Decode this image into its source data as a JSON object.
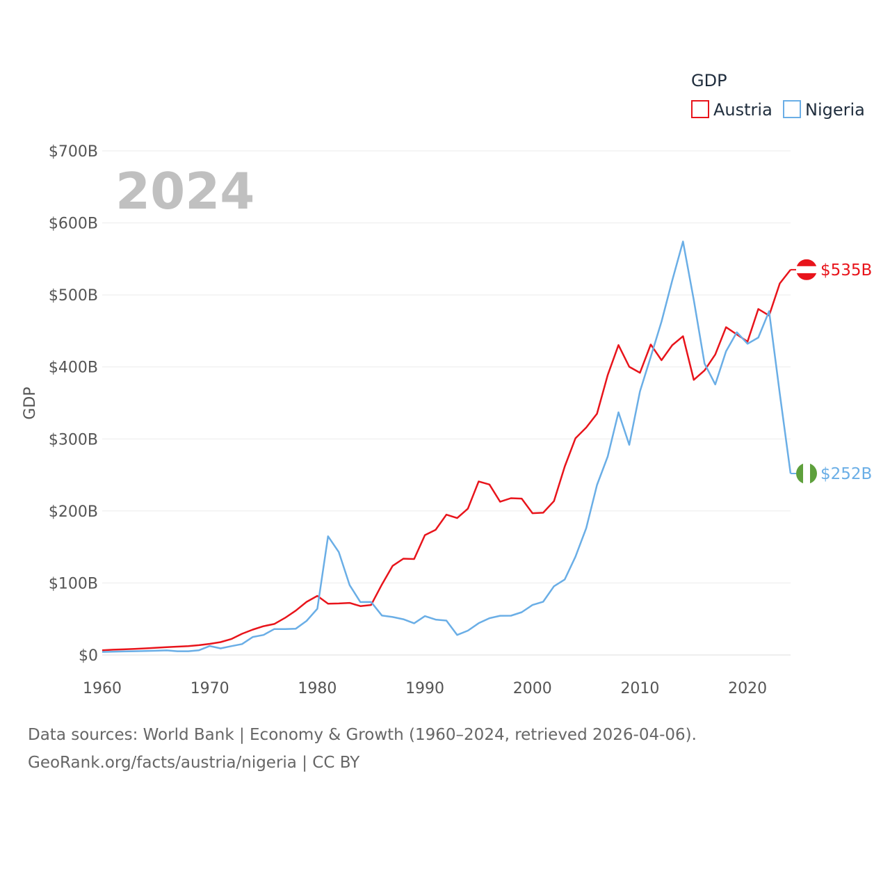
{
  "chart_data": {
    "type": "line",
    "title": "",
    "year_label": "2024",
    "legend_title": "GDP",
    "ylabel": "GDP",
    "xlabel": "",
    "ylim": [
      0,
      700
    ],
    "xlim": [
      1960,
      2024
    ],
    "x_ticks": [
      "1960",
      "1970",
      "1980",
      "1990",
      "2000",
      "2010",
      "2020"
    ],
    "y_ticks": [
      "$0",
      "$100B",
      "$200B",
      "$300B",
      "$400B",
      "$500B",
      "$600B",
      "$700B"
    ],
    "x": [
      1960,
      1961,
      1962,
      1963,
      1964,
      1965,
      1966,
      1967,
      1968,
      1969,
      1970,
      1971,
      1972,
      1973,
      1974,
      1975,
      1976,
      1977,
      1978,
      1979,
      1980,
      1981,
      1982,
      1983,
      1984,
      1985,
      1986,
      1987,
      1988,
      1989,
      1990,
      1991,
      1992,
      1993,
      1994,
      1995,
      1996,
      1997,
      1998,
      1999,
      2000,
      2001,
      2002,
      2003,
      2004,
      2005,
      2006,
      2007,
      2008,
      2009,
      2010,
      2011,
      2012,
      2013,
      2014,
      2015,
      2016,
      2017,
      2018,
      2019,
      2020,
      2021,
      2022,
      2023,
      2024
    ],
    "series": [
      {
        "name": "Austria",
        "color": "#e8141b",
        "end_label": "$535B",
        "values": [
          6.6,
          7.3,
          7.8,
          8.4,
          9.2,
          10.0,
          10.9,
          11.6,
          12.4,
          13.6,
          15.4,
          17.9,
          22.1,
          29.4,
          35.2,
          40.0,
          43.1,
          51.6,
          61.6,
          73.8,
          82.1,
          71.3,
          71.5,
          72.3,
          67.9,
          69.4,
          97.8,
          123.8,
          133.7,
          133.2,
          166.5,
          173.8,
          194.8,
          190.1,
          203.1,
          241.0,
          236.7,
          212.8,
          217.7,
          217.1,
          196.9,
          197.5,
          213.7,
          261.7,
          300.9,
          315.8,
          335.0,
          388.7,
          430.3,
          400.2,
          391.9,
          431.1,
          409.4,
          430.1,
          442.6,
          382.1,
          395.2,
          417.3,
          455.1,
          445.1,
          435.2,
          480.4,
          471.4,
          516.0,
          535.0
        ]
      },
      {
        "name": "Nigeria",
        "color": "#6aaee6",
        "end_label": "$252B",
        "values": [
          4.2,
          4.5,
          4.9,
          5.2,
          5.6,
          5.9,
          6.4,
          5.2,
          5.2,
          6.6,
          12.5,
          9.2,
          12.3,
          15.2,
          25.0,
          27.8,
          36.0,
          36.0,
          36.5,
          47.3,
          64.2,
          164.8,
          142.8,
          97.1,
          73.5,
          73.7,
          54.8,
          52.7,
          49.6,
          44.0,
          54.0,
          49.1,
          47.8,
          27.8,
          33.8,
          44.1,
          51.1,
          54.5,
          54.6,
          59.4,
          69.4,
          74.0,
          95.4,
          104.9,
          136.4,
          176.1,
          236.1,
          275.6,
          337.0,
          291.9,
          366.0,
          414.0,
          463.0,
          520.0,
          574.2,
          493.0,
          404.6,
          375.7,
          421.7,
          448.1,
          432.2,
          440.8,
          477.4,
          362.8,
          252.0
        ]
      }
    ]
  },
  "source": {
    "line1": "Data sources: World Bank | Economy & Growth (1960–2024, retrieved 2026-04-06).",
    "line2": "GeoRank.org/facts/austria/nigeria | CC BY"
  }
}
